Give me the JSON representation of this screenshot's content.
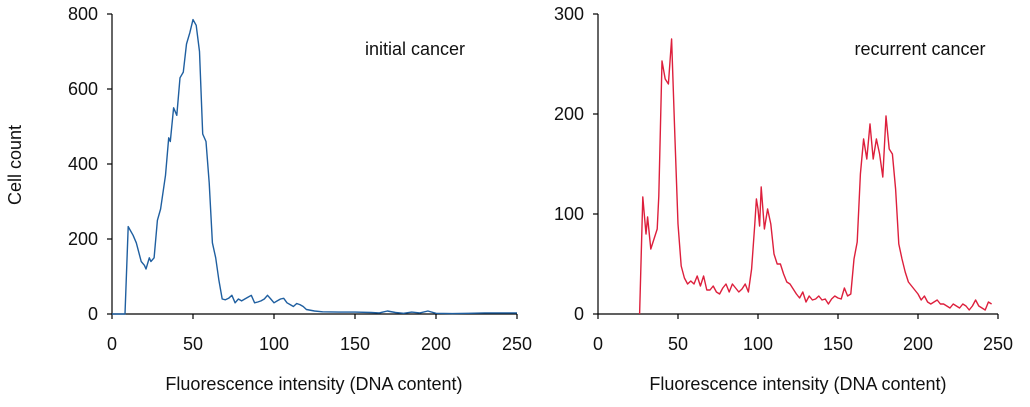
{
  "figure": {
    "ylabel": "Cell count"
  },
  "chart_data": [
    {
      "type": "line",
      "annotation": "initial cancer",
      "xlabel": "Fluorescence intensity (DNA content)",
      "ylabel": "Cell count",
      "xlim": [
        0,
        250
      ],
      "ylim": [
        0,
        800
      ],
      "xticks": [
        0,
        50,
        100,
        150,
        200,
        250
      ],
      "yticks": [
        0,
        200,
        400,
        600,
        800
      ],
      "grid": false,
      "color": "#1f5fa0",
      "series": [
        {
          "x": [
            0,
            6,
            8,
            10,
            13,
            15,
            18,
            20,
            21,
            23,
            24,
            26,
            28,
            30,
            33,
            35,
            36,
            38,
            40,
            42,
            44,
            46,
            48,
            50,
            52,
            54,
            56,
            58,
            60,
            62,
            64,
            66,
            68,
            70,
            72,
            74,
            76,
            78,
            80,
            82,
            84,
            86,
            88,
            90,
            92,
            94,
            96,
            98,
            100,
            102,
            104,
            106,
            108,
            110,
            112,
            114,
            116,
            118,
            120,
            125,
            130,
            140,
            150,
            160,
            165,
            170,
            175,
            180,
            185,
            190,
            195,
            200,
            210,
            220,
            230,
            240,
            250
          ],
          "y": [
            0,
            0,
            0,
            233,
            210,
            190,
            140,
            130,
            120,
            150,
            140,
            150,
            250,
            280,
            370,
            470,
            460,
            550,
            530,
            630,
            645,
            720,
            750,
            785,
            770,
            700,
            480,
            460,
            350,
            190,
            150,
            90,
            40,
            38,
            42,
            50,
            30,
            40,
            35,
            40,
            45,
            50,
            30,
            32,
            35,
            40,
            50,
            40,
            30,
            35,
            40,
            42,
            30,
            25,
            20,
            28,
            25,
            20,
            12,
            8,
            6,
            5,
            5,
            4,
            3,
            8,
            4,
            2,
            5,
            3,
            8,
            2,
            1,
            2,
            3,
            3,
            3
          ]
        }
      ]
    },
    {
      "type": "line",
      "annotation": "recurrent cancer",
      "xlabel": "Fluorescence intensity (DNA content)",
      "ylabel": "",
      "xlim": [
        0,
        250
      ],
      "ylim": [
        0,
        300
      ],
      "xticks": [
        0,
        50,
        100,
        150,
        200,
        250
      ],
      "yticks": [
        0,
        100,
        200,
        300
      ],
      "grid": false,
      "color": "#dd1f3c",
      "series": [
        {
          "x": [
            26,
            28,
            30,
            31,
            33,
            35,
            37,
            38,
            40,
            42,
            44,
            46,
            48,
            50,
            52,
            54,
            56,
            58,
            60,
            62,
            64,
            66,
            68,
            70,
            72,
            74,
            76,
            78,
            80,
            82,
            84,
            86,
            88,
            90,
            92,
            94,
            96,
            98,
            99,
            100,
            101,
            102,
            104,
            106,
            108,
            110,
            112,
            114,
            116,
            118,
            120,
            122,
            124,
            126,
            128,
            130,
            132,
            134,
            136,
            138,
            140,
            142,
            144,
            146,
            148,
            150,
            152,
            154,
            156,
            158,
            160,
            162,
            164,
            166,
            168,
            170,
            172,
            174,
            176,
            178,
            180,
            182,
            184,
            186,
            188,
            190,
            192,
            194,
            196,
            198,
            200,
            202,
            204,
            206,
            208,
            210,
            212,
            214,
            216,
            218,
            220,
            222,
            224,
            226,
            228,
            230,
            232,
            234,
            236,
            238,
            240,
            242,
            244,
            246
          ],
          "y": [
            0,
            117,
            80,
            97,
            65,
            75,
            85,
            118,
            253,
            235,
            230,
            275,
            180,
            90,
            48,
            36,
            30,
            33,
            30,
            38,
            28,
            38,
            24,
            24,
            28,
            22,
            20,
            26,
            30,
            22,
            30,
            26,
            22,
            25,
            30,
            22,
            45,
            90,
            115,
            105,
            88,
            127,
            85,
            105,
            90,
            60,
            50,
            50,
            40,
            32,
            30,
            25,
            20,
            16,
            22,
            12,
            18,
            14,
            15,
            18,
            14,
            15,
            10,
            15,
            18,
            16,
            15,
            26,
            18,
            20,
            55,
            72,
            140,
            175,
            155,
            190,
            155,
            175,
            160,
            137,
            198,
            165,
            160,
            125,
            70,
            55,
            42,
            32,
            28,
            24,
            20,
            14,
            18,
            12,
            10,
            12,
            14,
            10,
            10,
            8,
            6,
            10,
            8,
            6,
            10,
            8,
            4,
            8,
            14,
            8,
            6,
            4,
            12,
            10
          ]
        }
      ]
    }
  ]
}
